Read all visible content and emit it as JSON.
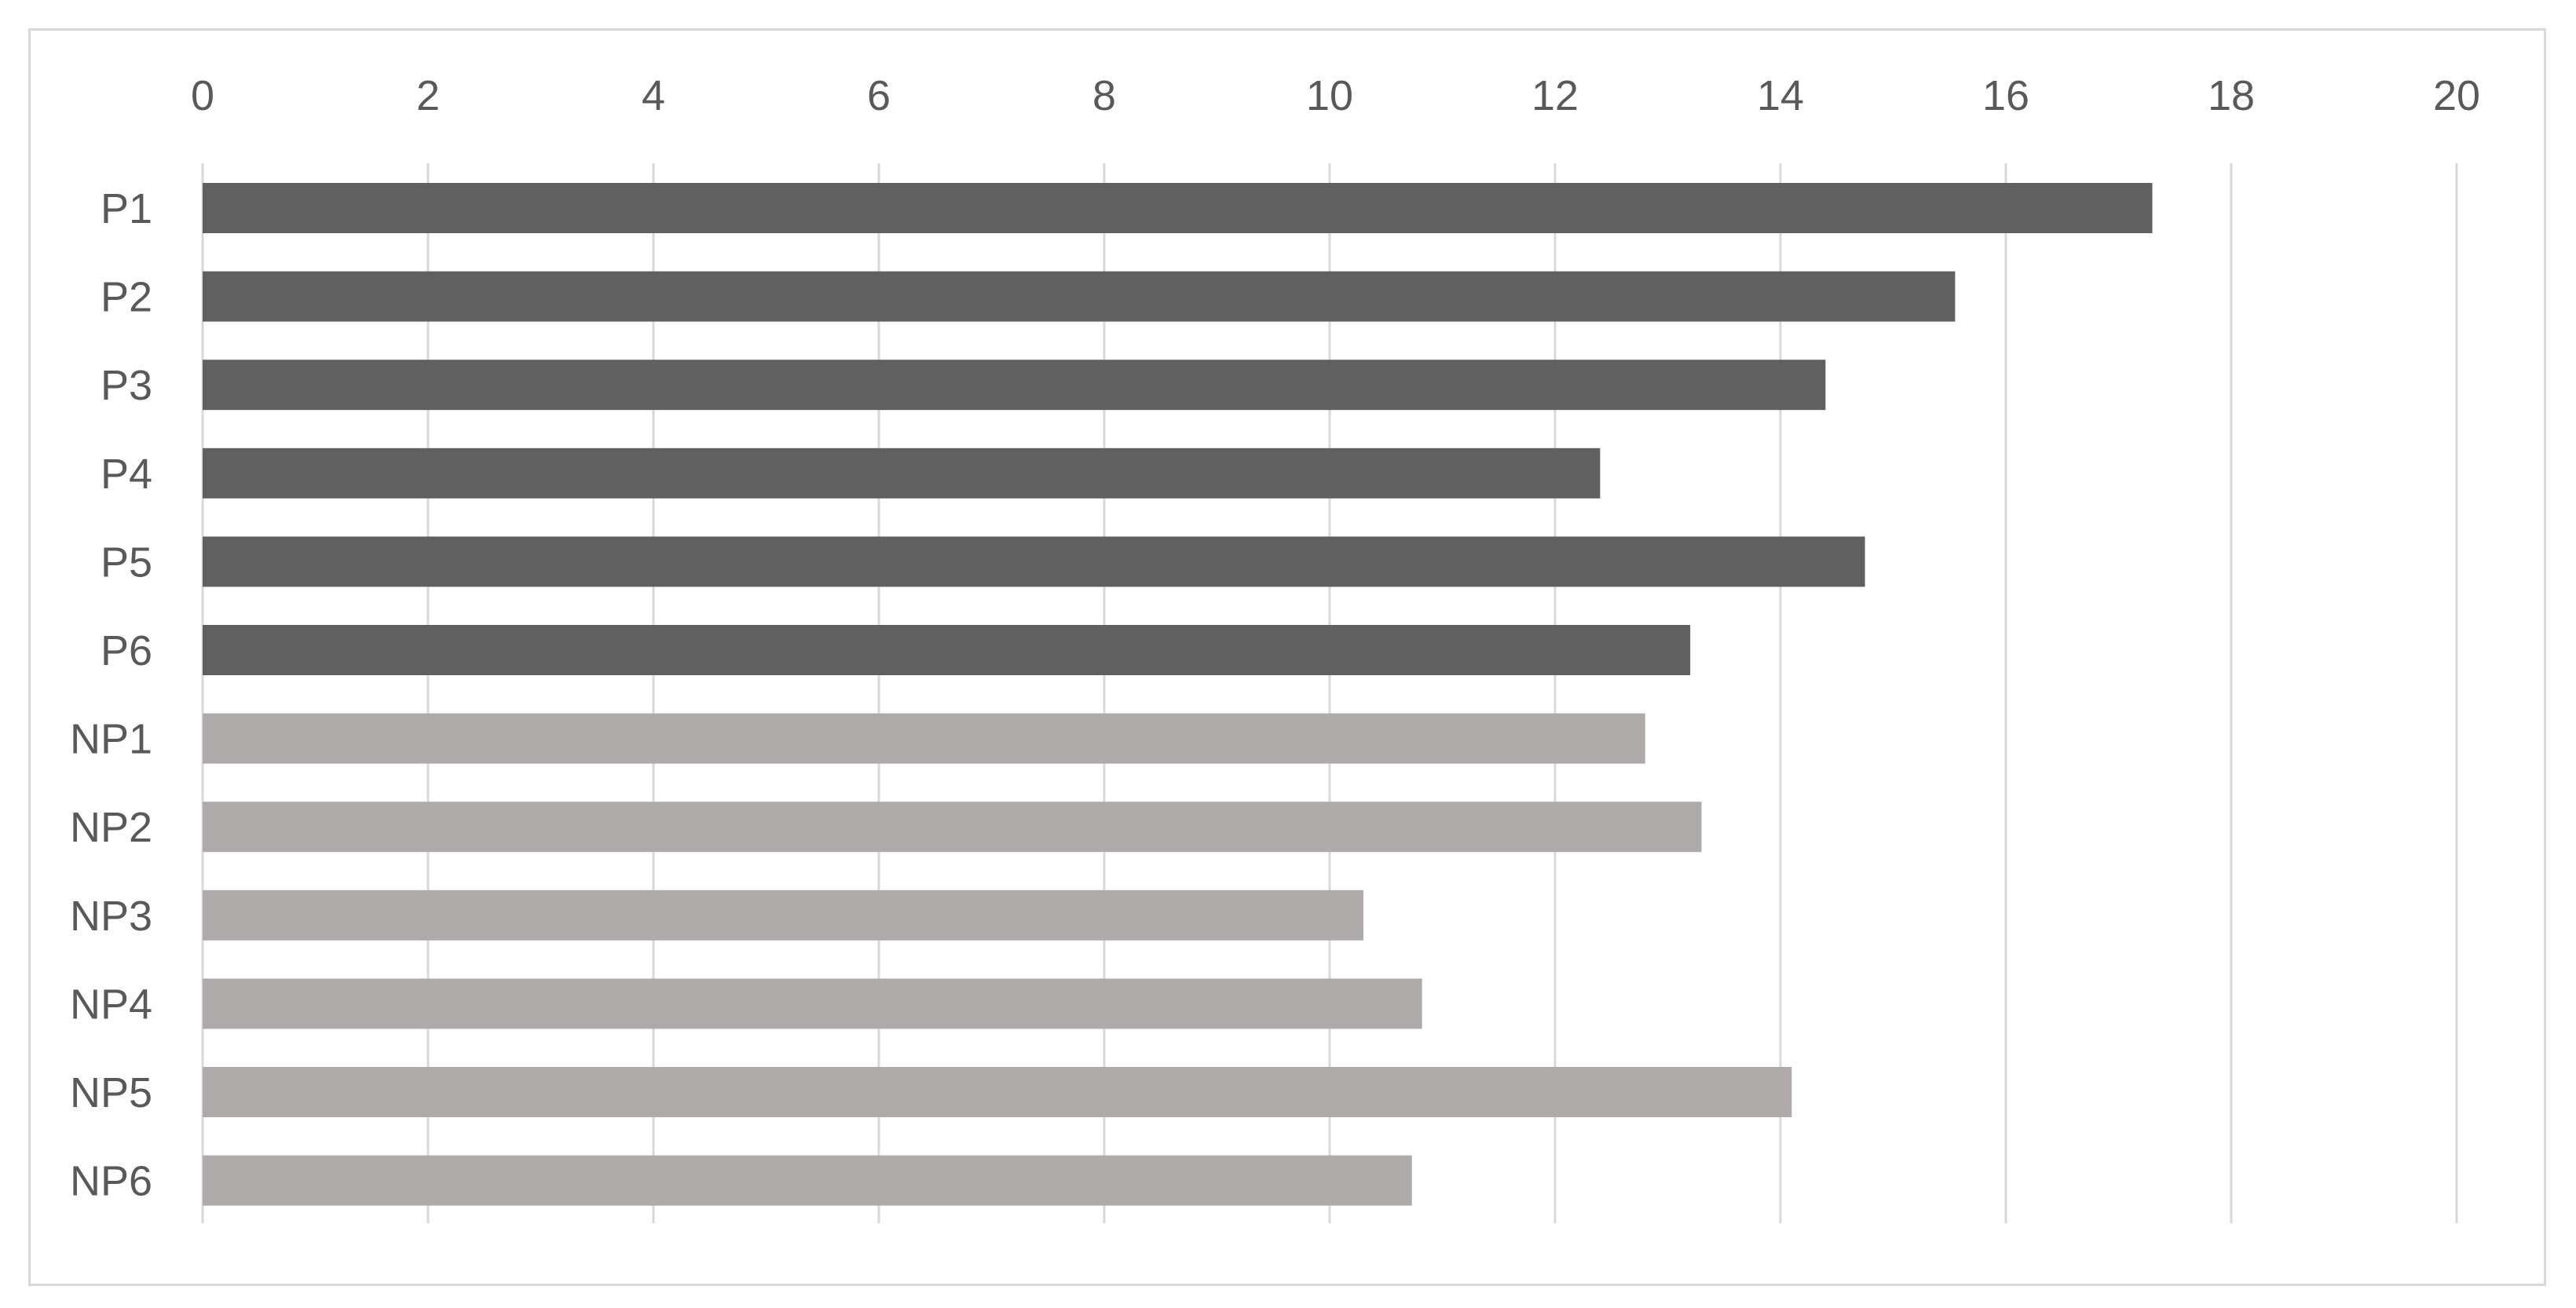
{
  "chart_data": {
    "type": "bar",
    "orientation": "horizontal",
    "xaxis_position": "top",
    "grid": true,
    "legend": false,
    "xlim": [
      0,
      20
    ],
    "xticks": [
      "0",
      "2",
      "4",
      "6",
      "8",
      "10",
      "12",
      "14",
      "16",
      "18",
      "20"
    ],
    "categories": [
      "P1",
      "P2",
      "P3",
      "P4",
      "P5",
      "P6",
      "NP1",
      "NP2",
      "NP3",
      "NP4",
      "NP5",
      "NP6"
    ],
    "values": [
      17.3,
      15.55,
      14.4,
      12.4,
      14.75,
      13.2,
      12.8,
      13.3,
      10.3,
      10.82,
      14.1,
      10.73
    ],
    "bar_colors": [
      "#606060",
      "#606060",
      "#606060",
      "#606060",
      "#606060",
      "#606060",
      "#aeaaaa",
      "#aeaaaa",
      "#aeaaaa",
      "#aeaaaa",
      "#aeaaaa",
      "#aeaaaa"
    ],
    "gridline_color": "#d9d9d9",
    "title": "",
    "xlabel": "",
    "ylabel": ""
  }
}
